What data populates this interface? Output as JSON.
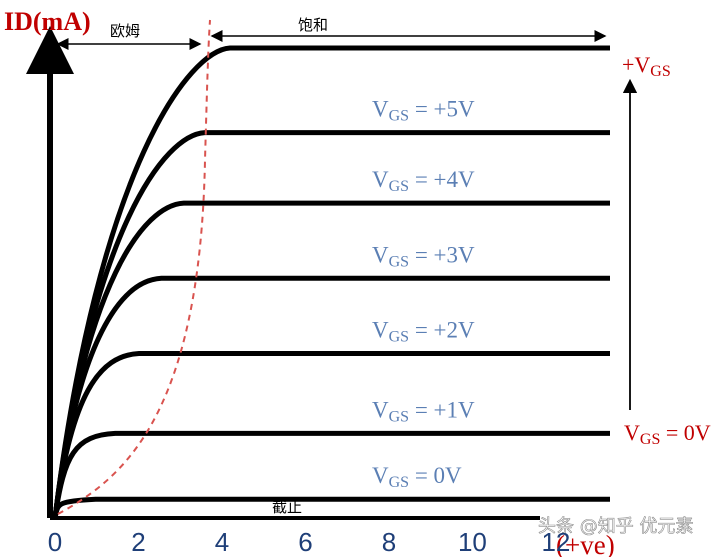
{
  "chart_data": {
    "type": "line",
    "ylabel": "ID(mA)",
    "xlabel": "(+ve)",
    "x_ticks": [
      "0",
      "2",
      "4",
      "6",
      "8",
      "10",
      "12"
    ],
    "xlim": [
      0,
      13.2
    ],
    "series": [
      {
        "name": "VGS = 0V",
        "vgs_text": "0V",
        "saturation_level": 0.04
      },
      {
        "name": "VGS = +1V",
        "vgs_text": "+1V",
        "saturation_level": 0.18
      },
      {
        "name": "VGS = +2V",
        "vgs_text": "+2V",
        "saturation_level": 0.35
      },
      {
        "name": "VGS = +3V",
        "vgs_text": "+3V",
        "saturation_level": 0.51
      },
      {
        "name": "VGS = +4V",
        "vgs_text": "+4V",
        "saturation_level": 0.67
      },
      {
        "name": "VGS = +5V",
        "vgs_text": "+5V",
        "saturation_level": 0.82
      },
      {
        "name": "top",
        "saturation_level": 1.0
      }
    ],
    "regions": {
      "ohmic": "欧姆",
      "saturation": "饱和",
      "cutoff": "截止"
    },
    "side_labels": {
      "top": "+VGS",
      "bottom": "VGS = 0V"
    },
    "colors": {
      "curves": "#000000",
      "boundary": "#d9534f",
      "axis_title": "#c00000",
      "ticks": "#1f3f78",
      "vgs_labels": "#5b7fb4"
    }
  },
  "watermark": "头条 @知乎 优元素"
}
